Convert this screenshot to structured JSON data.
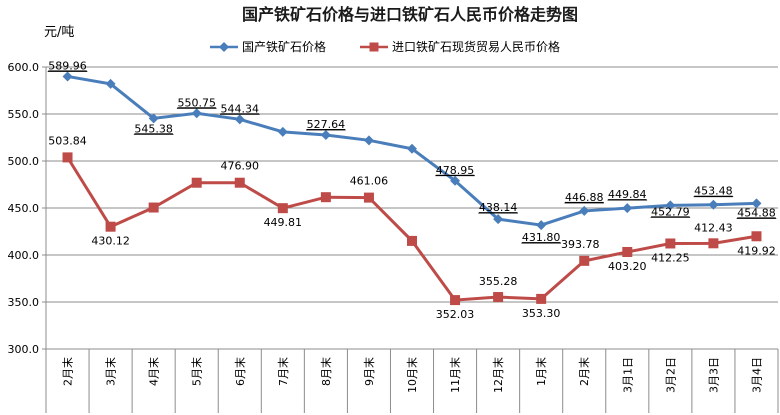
{
  "chart_data": {
    "type": "line",
    "title": "国产铁矿石价格与进口铁矿石人民币价格走势图",
    "ylabel": "元/吨",
    "xlabel": "",
    "ylim": [
      300,
      600
    ],
    "yticks": [
      "300.0",
      "350.0",
      "400.0",
      "450.0",
      "500.0",
      "550.0",
      "600.0"
    ],
    "grid": true,
    "legend": "top-right",
    "categories": [
      "2月末",
      "3月末",
      "4月末",
      "5月末",
      "6月末",
      "7月末",
      "8月末",
      "9月末",
      "10月末",
      "11月末",
      "12月末",
      "1月末",
      "2月末",
      "3月1日",
      "3月2日",
      "3月3日",
      "3月4日"
    ],
    "series": [
      {
        "name": "国产铁矿石价格",
        "color": "#4a7ebb",
        "marker": "diamond",
        "values": [
          589.96,
          582,
          545.38,
          550.75,
          544.34,
          531,
          527.64,
          522,
          513,
          478.95,
          438.14,
          431.8,
          446.88,
          449.84,
          452.79,
          453.48,
          454.88
        ],
        "labels": [
          "589.96",
          "",
          "545.38",
          "550.75",
          "544.34",
          "",
          "527.64",
          "",
          "",
          "478.95",
          "438.14",
          "431.80",
          "446.88",
          "449.84",
          "452.79",
          "453.48",
          "454.88"
        ]
      },
      {
        "name": "进口铁矿石现货贸易人民币价格",
        "color": "#be4b48",
        "marker": "square",
        "values": [
          503.84,
          430.12,
          450.5,
          476.9,
          476.9,
          449.81,
          461.5,
          461.06,
          415,
          352.03,
          355.28,
          353.3,
          393.78,
          403.2,
          412.25,
          412.43,
          419.92
        ],
        "labels": [
          "503.84",
          "430.12",
          "",
          "",
          "476.90",
          "449.81",
          "",
          "461.06",
          "",
          "352.03",
          "355.28",
          "353.30",
          "393.78",
          "403.20",
          "412.25",
          "412.43",
          "419.92"
        ]
      }
    ]
  }
}
